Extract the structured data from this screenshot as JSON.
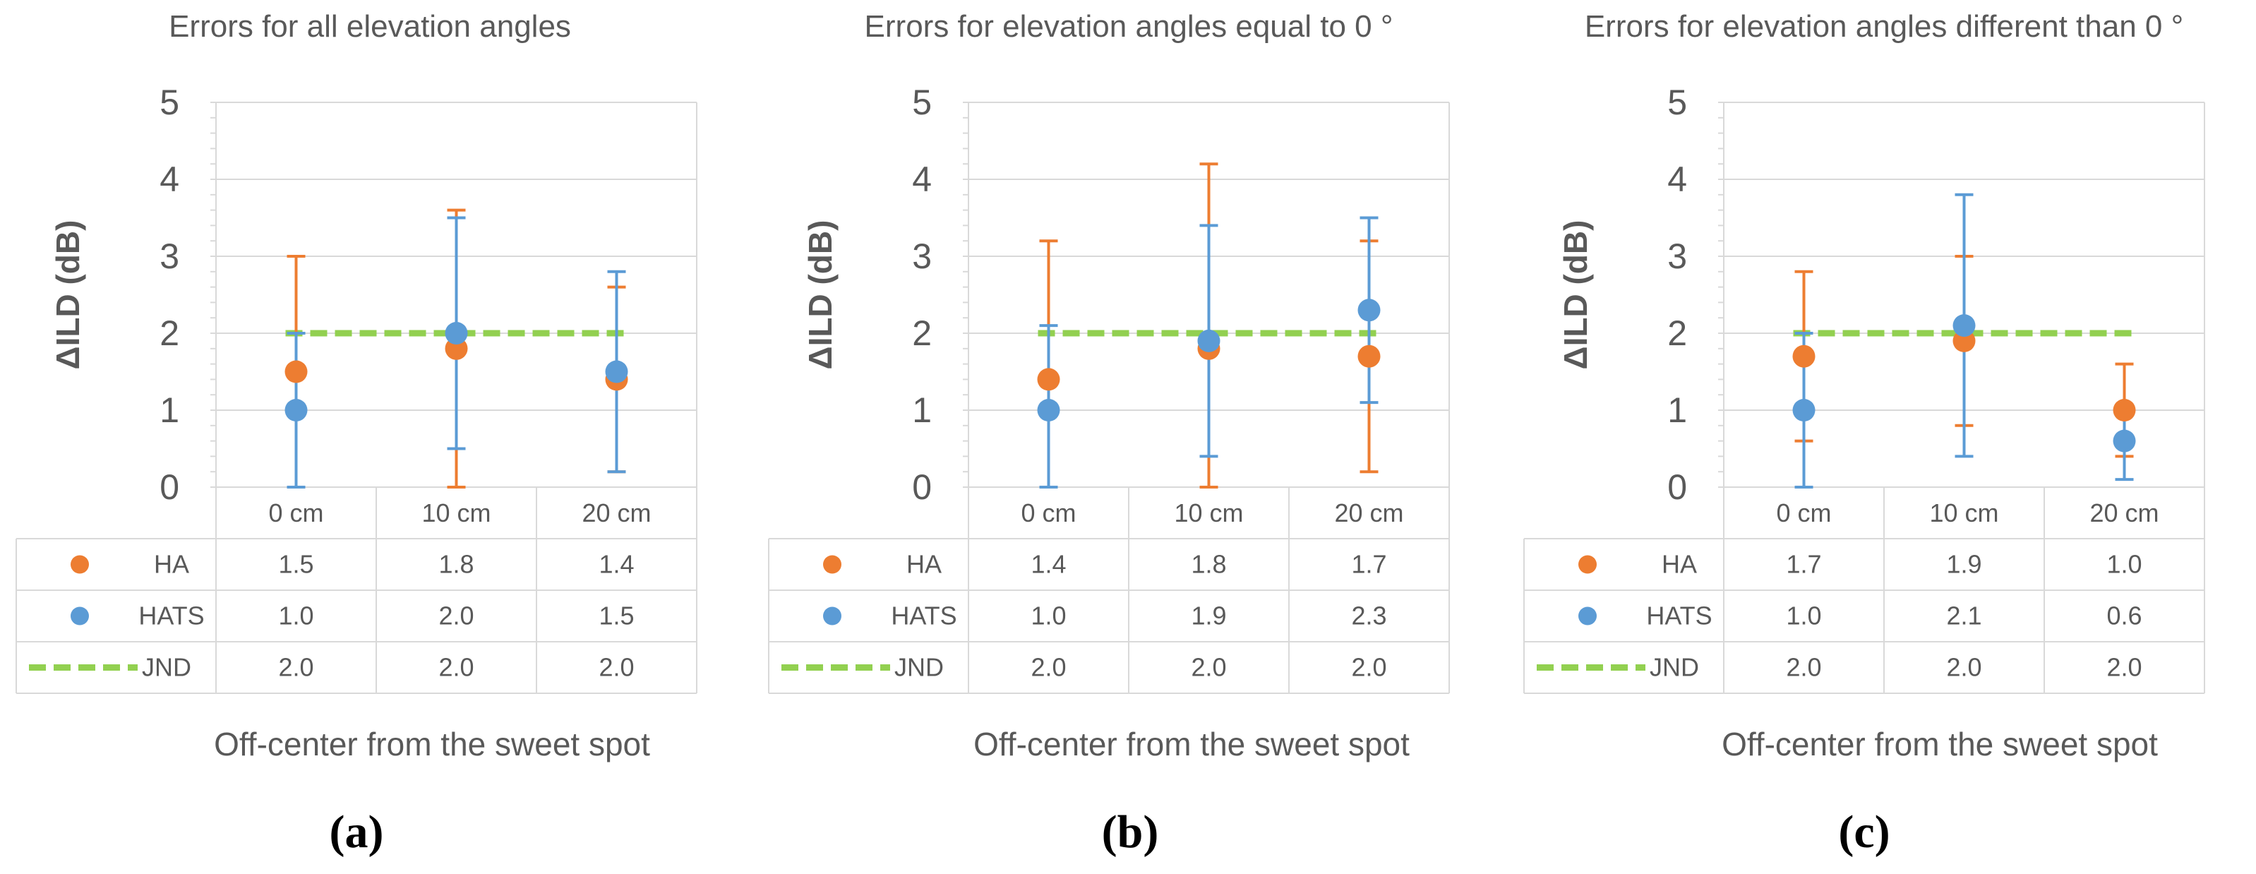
{
  "colors": {
    "ha": "#ED7D31",
    "hats": "#5B9BD5",
    "jnd": "#92D050",
    "grid": "#D9D9D9",
    "text": "#595959"
  },
  "legend_icons": [
    "circle-marker-icon",
    "circle-marker-icon",
    "dashed-line-icon"
  ],
  "chart_data": [
    {
      "type": "scatter",
      "panel_label": "(a)",
      "title": "Errors for all elevation angles",
      "xlabel": "Off-center from the sweet spot",
      "ylabel": "ΔILD (dB)",
      "ylim": [
        0,
        5
      ],
      "y_ticks": [
        "0",
        "1",
        "2",
        "3",
        "4",
        "5"
      ],
      "categories": [
        "0 cm",
        "10 cm",
        "20 cm"
      ],
      "series": [
        {
          "name": "HA",
          "values": [
            1.5,
            1.8,
            1.4
          ],
          "labels": [
            "1.5",
            "1.8",
            "1.4"
          ],
          "error_low": [
            0.0,
            0.0,
            0.2
          ],
          "error_high": [
            3.0,
            3.6,
            2.6
          ]
        },
        {
          "name": "HATS",
          "values": [
            1.0,
            2.0,
            1.5
          ],
          "labels": [
            "1.0",
            "2.0",
            "1.5"
          ],
          "error_low": [
            0.0,
            0.5,
            0.2
          ],
          "error_high": [
            2.0,
            3.5,
            2.8
          ]
        },
        {
          "name": "JND",
          "values": [
            2.0,
            2.0,
            2.0
          ],
          "labels": [
            "2.0",
            "2.0",
            "2.0"
          ]
        }
      ]
    },
    {
      "type": "scatter",
      "panel_label": "(b)",
      "title": "Errors for elevation angles equal to  0 °",
      "xlabel": "Off-center from the sweet spot",
      "ylabel": "ΔILD (dB)",
      "ylim": [
        0,
        5
      ],
      "y_ticks": [
        "0",
        "1",
        "2",
        "3",
        "4",
        "5"
      ],
      "categories": [
        "0 cm",
        "10 cm",
        "20 cm"
      ],
      "series": [
        {
          "name": "HA",
          "values": [
            1.4,
            1.8,
            1.7
          ],
          "labels": [
            "1.4",
            "1.8",
            "1.7"
          ],
          "error_low": [
            0.0,
            0.0,
            0.2
          ],
          "error_high": [
            3.2,
            4.2,
            3.2
          ]
        },
        {
          "name": "HATS",
          "values": [
            1.0,
            1.9,
            2.3
          ],
          "labels": [
            "1.0",
            "1.9",
            "2.3"
          ],
          "error_low": [
            0.0,
            0.4,
            1.1
          ],
          "error_high": [
            2.1,
            3.4,
            3.5
          ]
        },
        {
          "name": "JND",
          "values": [
            2.0,
            2.0,
            2.0
          ],
          "labels": [
            "2.0",
            "2.0",
            "2.0"
          ]
        }
      ]
    },
    {
      "type": "scatter",
      "panel_label": "(c)",
      "title": "Errors for elevation angles different than  0 °",
      "xlabel": "Off-center from the sweet spot",
      "ylabel": "ΔILD (dB)",
      "ylim": [
        0,
        5
      ],
      "y_ticks": [
        "0",
        "1",
        "2",
        "3",
        "4",
        "5"
      ],
      "categories": [
        "0 cm",
        "10 cm",
        "20 cm"
      ],
      "series": [
        {
          "name": "HA",
          "values": [
            1.7,
            1.9,
            1.0
          ],
          "labels": [
            "1.7",
            "1.9",
            "1.0"
          ],
          "error_low": [
            0.6,
            0.8,
            0.4
          ],
          "error_high": [
            2.8,
            3.0,
            1.6
          ]
        },
        {
          "name": "HATS",
          "values": [
            1.0,
            2.1,
            0.6
          ],
          "labels": [
            "1.0",
            "2.1",
            "0.6"
          ],
          "error_low": [
            0.0,
            0.4,
            0.1
          ],
          "error_high": [
            2.0,
            3.8,
            1.0
          ]
        },
        {
          "name": "JND",
          "values": [
            2.0,
            2.0,
            2.0
          ],
          "labels": [
            "2.0",
            "2.0",
            "2.0"
          ]
        }
      ]
    }
  ]
}
